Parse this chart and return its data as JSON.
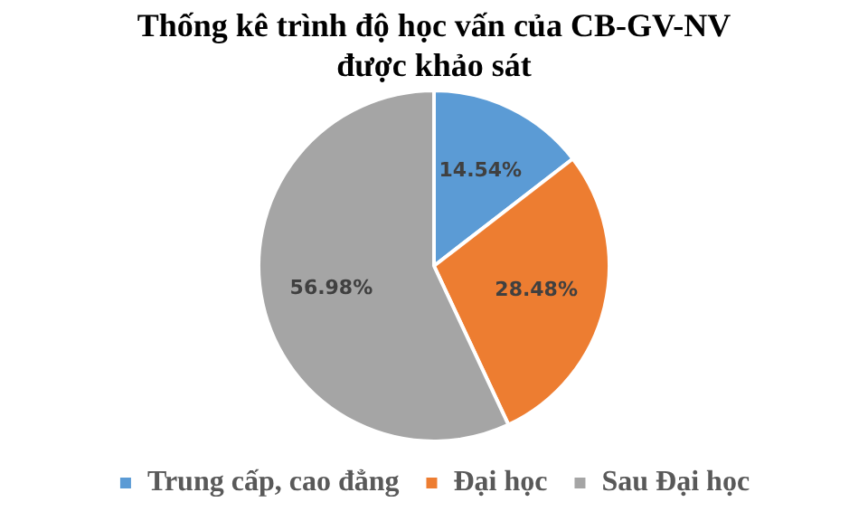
{
  "chart_data": {
    "type": "pie",
    "title": "Thống kê trình độ học vấn của CB-GV-NV được khảo sát",
    "categories": [
      "Trung cấp, cao đẳng",
      "Đại học",
      "Sau Đại học"
    ],
    "values": [
      14.54,
      28.48,
      56.98
    ],
    "colors": [
      "#5b9bd5",
      "#ed7d31",
      "#a5a5a5"
    ],
    "value_labels": [
      "14.54%",
      "28.48%",
      "56.98%"
    ],
    "legend": "bottom"
  }
}
